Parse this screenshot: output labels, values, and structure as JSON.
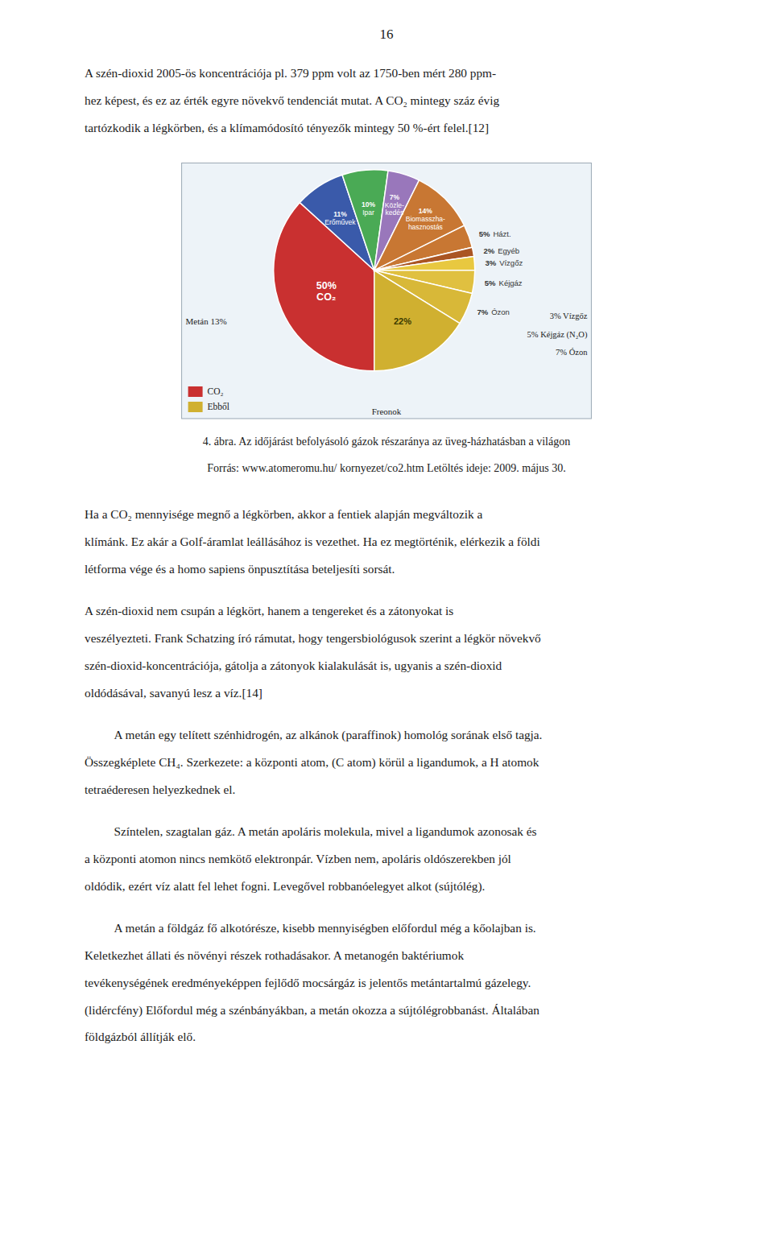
{
  "page_number": "16",
  "paragraphs": [
    [
      "A szén-dioxid 2005-ös koncentrációja pl. 379 ppm volt az 1750-ben mért 280 ppm-",
      "hez képest, és ez az érték egyre növekvő tendenciát mutat. A CO₂ mintegy száz évig",
      "tartózkodik a légkörben, és a klímamódosító tényezők mintegy 50 %-ért felel.[12]"
    ],
    [
      "Ha a CO₂ mennyisége megnő a légkörben, akkor a fentiek alapján megváltozik a",
      "klímánk. Ez akár a Golf-áramlat leállásához is vezethet. Ha ez megtörténik, elérkezik a földi",
      "létforma vége és a homo sapiens önpusztítása beteljesíti sorsát."
    ],
    [
      "A szén-dioxid nem csupán a légkört, hanem a tengereket és a zátonyokat is",
      "veszélyezteti. Frank Schatzing író rámutat, hogy tengersbiológusok szerint a légkör növekvő",
      "szén-dioxid-koncentrációja, gátolja a zátonyok kialakulását is, ugyanis a szén-dioxid",
      "oldódásával, savanyú lesz a víz.[14]"
    ],
    [
      "A metán egy telített szénhidrogén, az alkánok (paraffinok) homológ sorának első tagja.",
      "Összegképlete CH₄. Szerkezete: a központi atom, (C atom) körül a ligandumok, a H atomok",
      "tetraéderesen helyezkednek el."
    ],
    [
      "Színtelen, szagtalan gáz. A metán apoláris molekula, mivel a ligandumok azonosak és",
      "a központi atomon nincs nemkötő elektronpár. Vízben nem, apoláris oldószerekben jól",
      "oldódik, ezért víz alatt fel lehet fogni. Levegővel robbanóelegyet alkot (sújtólég)."
    ],
    [
      "A metán a földgáz fő alkotórésze, kisebb mennyiségben előfordul még a kőolajban is.",
      "Keletkezhet állati és növényi részek rothadásakor. A metanogén baktériumok",
      "tevékenységének eredményeképpen fejlődő mocsárgáz is jelentős metántartalmú gázelegy.",
      "(lidércfény) Előfordul még a szénbányákban, a metán okozza a sújtólégrobbanást. Általában",
      "földgázból állítják elő."
    ]
  ],
  "chart_data": {
    "type": "pie",
    "title": "4. ábra. Az időjárást befolyásoló gázok részaránya az üveg-házhatásban a világon",
    "subtitle": "Forrás: www.atomeromu.hu/ kornyezet/co2.htm Letöltés ideje: 2009. május 30.",
    "categories": [
      "CO₂",
      "Erőművek",
      "Ipar",
      "Közle-\nkedés",
      "Biomasszha-\nhasznostás",
      "Házt.",
      "Egyéb",
      "Vízgőz",
      "Kéjgáz",
      "Ózon",
      null
    ],
    "values": [
      50,
      11,
      10,
      7,
      14,
      5,
      2,
      3,
      5,
      7,
      22
    ],
    "value_labels": [
      "50%",
      "11%",
      "10%",
      "7%",
      "14%",
      "5%",
      "2%",
      "3%",
      "5%",
      "7%",
      "22%"
    ],
    "data_labels": true,
    "colors": [
      "#c93030",
      "#3a5aaa",
      "#4aaa55",
      "#9977bb",
      "#c87733",
      "#c87733",
      "#aa5522",
      "#e8c840",
      "#e0c040",
      "#d8b838",
      "#d0b030"
    ],
    "annotations": [
      "Metán  13%",
      "Freonok",
      "3%  Vízgőz",
      "5%  Kéjgáz (N₂O)",
      "7%  Ózon"
    ],
    "legend": "lower left",
    "legend_entries": [
      {
        "name": "CO₂",
        "color": "#c93030"
      },
      {
        "name": "Ebből",
        "color": "#d0b030"
      }
    ]
  }
}
